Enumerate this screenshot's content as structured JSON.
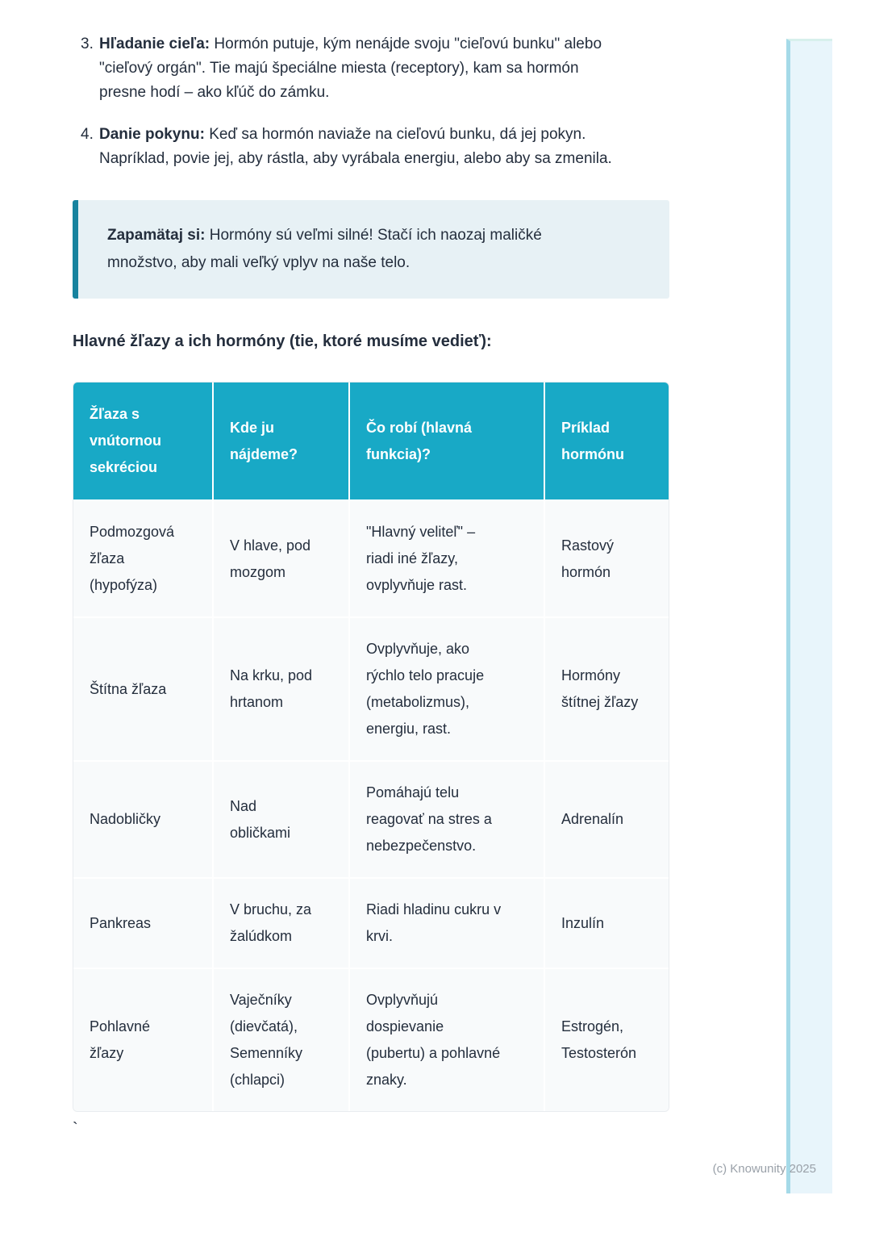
{
  "list_items": [
    {
      "number": "3.",
      "lead": "Hľadanie cieľa:",
      "text": "Hormón putuje, kým nenájde svoju \"cieľovú bunku\" alebo \"cieľový orgán\". Tie majú špeciálne miesta (receptory), kam sa hormón presne hodí – ako kľúč do zámku."
    },
    {
      "number": "4.",
      "lead": "Danie pokynu:",
      "text": "Keď sa hormón naviaže na cieľovú bunku, dá jej pokyn. Napríklad, povie jej, aby rástla, aby vyrábala energiu, alebo aby sa zmenila."
    }
  ],
  "callout": {
    "lead": "Zapamätaj si:",
    "text": "Hormóny sú veľmi silné! Stačí ich naozaj maličké množstvo, aby mali veľký vplyv na naše telo."
  },
  "section_heading": "Hlavné žľazy a ich hormóny (tie, ktoré musíme vedieť):",
  "table": {
    "headers": [
      "Žľaza s vnútornou sekréciou",
      "Kde ju nájdeme?",
      "Čo robí (hlavná funkcia)?",
      "Príklad hormónu"
    ],
    "rows": [
      {
        "cells": [
          "Podmozgová žľaza (hypofýza)",
          "V hlave, pod mozgom",
          "\"Hlavný veliteľ\" – riadi iné žľazy, ovplyvňuje rast.",
          "Rastový hormón"
        ]
      },
      {
        "cells": [
          "Štítna žľaza",
          "Na krku, pod hrtanom",
          "Ovplyvňuje, ako rýchlo telo pracuje (metabolizmus), energiu, rast.",
          "Hormóny štítnej žľazy"
        ]
      },
      {
        "cells": [
          "Nadobličky",
          "Nad obličkami",
          "Pomáhajú telu reagovať na stres a nebezpečenstvo.",
          "Adrenalín"
        ]
      },
      {
        "cells": [
          "Pankreas",
          "V bruchu, za žalúdkom",
          "Riadi hladinu cukru v krvi.",
          "Inzulín"
        ]
      },
      {
        "cells": [
          "Pohlavné žľazy",
          "Vaječníky (dievčatá), Semenníky (chlapci)",
          "Ovplyvňujú dospievanie (pubertu) a pohlavné znaky.",
          "Estrogén, Testosterón"
        ]
      }
    ]
  },
  "stray_char": "`",
  "footer_text": "(c) Knowunity 2025",
  "colors": {
    "accent_teal": "#18a9c6",
    "callout_border": "#17839f",
    "callout_background": "#e7f1f5",
    "table_cell_background": "#f8fafb",
    "side_stripe_background": "#e8f5fb",
    "side_stripe_border": "#a5dae8",
    "body_text": "#242e3d",
    "footer_text": "#9aa1a9"
  }
}
